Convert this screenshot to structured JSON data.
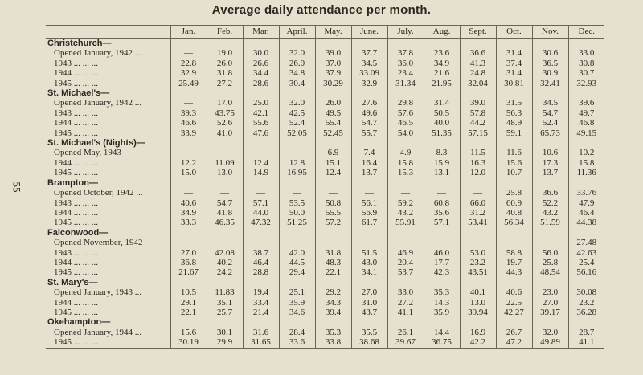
{
  "title": "Average daily attendance per month.",
  "page_number": "55",
  "table": {
    "columns": [
      "Jan.",
      "Feb.",
      "Mar.",
      "April.",
      "May.",
      "June.",
      "July.",
      "Aug.",
      "Sept.",
      "Oct.",
      "Nov.",
      "Dec."
    ],
    "sections": [
      {
        "name": "Christchurch—",
        "rows": [
          {
            "label": "Opened January, 1942 ...",
            "cells": [
              "—",
              "19.0",
              "30.0",
              "32.0",
              "39.0",
              "37.7",
              "37.8",
              "23.6",
              "36.6",
              "31.4",
              "30.6",
              "33.0"
            ]
          },
          {
            "label": "1943 ... ... ...",
            "cells": [
              "22.8",
              "26.0",
              "26.6",
              "26.0",
              "37.0",
              "34.5",
              "36.0",
              "34.9",
              "41.3",
              "37.4",
              "36.5",
              "30.8"
            ]
          },
          {
            "label": "1944 ... ... ...",
            "cells": [
              "32.9",
              "31.8",
              "34.4",
              "34.8",
              "37.9",
              "33.09",
              "23.4",
              "21.6",
              "24.8",
              "31.4",
              "30.9",
              "30.7"
            ]
          },
          {
            "label": "1945 ... ... ...",
            "cells": [
              "25.49",
              "27.2",
              "28.6",
              "30.4",
              "30.29",
              "32.9",
              "31.34",
              "21.95",
              "32.04",
              "30.81",
              "32.41",
              "32.93"
            ]
          }
        ]
      },
      {
        "name": "St. Michael's—",
        "rows": [
          {
            "label": "Opened January, 1942 ...",
            "cells": [
              "—",
              "17.0",
              "25.0",
              "32.0",
              "26.0",
              "27.6",
              "29.8",
              "31.4",
              "39.0",
              "31.5",
              "34.5",
              "39.6"
            ]
          },
          {
            "label": "1943 ... ... ...",
            "cells": [
              "39.3",
              "43.75",
              "42.1",
              "42.5",
              "49.5",
              "49.6",
              "57.6",
              "50.5",
              "57.8",
              "56.3",
              "54.7",
              "49.7"
            ]
          },
          {
            "label": "1944 ... ... ...",
            "cells": [
              "46.6",
              "52.6",
              "55.6",
              "52.4",
              "55.4",
              "54.7",
              "46.5",
              "40.0",
              "44.2",
              "48.9",
              "52.4",
              "46.8"
            ]
          },
          {
            "label": "1945 ... ... ...",
            "cells": [
              "33.9",
              "41.0",
              "47.6",
              "52.05",
              "52.45",
              "55.7",
              "54.0",
              "51.35",
              "57.15",
              "59.1",
              "65.73",
              "49.15"
            ]
          }
        ]
      },
      {
        "name": "St. Michael's (Nights)—",
        "rows": [
          {
            "label": "Opened May, 1943",
            "cells": [
              "—",
              "—",
              "—",
              "—",
              "6.9",
              "7.4",
              "4.9",
              "8.3",
              "11.5",
              "11.6",
              "10.6",
              "10.2"
            ]
          },
          {
            "label": "1944 ... ... ...",
            "cells": [
              "12.2",
              "11.09",
              "12.4",
              "12.8",
              "15.1",
              "16.4",
              "15.8",
              "15.9",
              "16.3",
              "15.6",
              "17.3",
              "15.8"
            ]
          },
          {
            "label": "1945 ... ... ...",
            "cells": [
              "15.0",
              "13.0",
              "14.9",
              "16.95",
              "12.4",
              "13.7",
              "15.3",
              "13.1",
              "12.0",
              "10.7",
              "13.7",
              "11.36"
            ]
          }
        ]
      },
      {
        "name": "Brampton—",
        "rows": [
          {
            "label": "Opened October, 1942 ...",
            "cells": [
              "—",
              "—",
              "—",
              "—",
              "—",
              "—",
              "—",
              "—",
              "—",
              "25.8",
              "36.6",
              "33.76"
            ]
          },
          {
            "label": "1943 ... ... ...",
            "cells": [
              "40.6",
              "54.7",
              "57.1",
              "53.5",
              "50.8",
              "56.1",
              "59.2",
              "60.8",
              "66.0",
              "60.9",
              "52.2",
              "47.9"
            ]
          },
          {
            "label": "1944 ... ... ...",
            "cells": [
              "34.9",
              "41.8",
              "44.0",
              "50.0",
              "55.5",
              "56.9",
              "43.2",
              "35.6",
              "31.2",
              "40.8",
              "43.2",
              "46.4"
            ]
          },
          {
            "label": "1945 ... ... ...",
            "cells": [
              "33.3",
              "46.35",
              "47.32",
              "51.25",
              "57.2",
              "61.7",
              "55.91",
              "57.1",
              "53.41",
              "56.34",
              "51.59",
              "44.38"
            ]
          }
        ]
      },
      {
        "name": "Falconwood—",
        "rows": [
          {
            "label": "Opened November, 1942",
            "cells": [
              "—",
              "—",
              "—",
              "—",
              "—",
              "—",
              "—",
              "—",
              "—",
              "—",
              "—",
              "27.48"
            ]
          },
          {
            "label": "1943 ... ... ...",
            "cells": [
              "27.0",
              "42.08",
              "38.7",
              "42.0",
              "31.8",
              "51.5",
              "46.9",
              "46.0",
              "53.0",
              "58.8",
              "56.0",
              "42.63"
            ]
          },
          {
            "label": "1944 ... ... ...",
            "cells": [
              "36.8",
              "40.2",
              "46.4",
              "44.5",
              "48.3",
              "43.0",
              "20.4",
              "17.7",
              "23.2",
              "19.7",
              "25.8",
              "25.4"
            ]
          },
          {
            "label": "1945 ... ... ...",
            "cells": [
              "21.67",
              "24.2",
              "28.8",
              "29.4",
              "22.1",
              "34.1",
              "53.7",
              "42.3",
              "43.51",
              "44.3",
              "48.54",
              "56.16"
            ]
          }
        ]
      },
      {
        "name": "St. Mary's—",
        "rows": [
          {
            "label": "Opened January, 1943 ...",
            "cells": [
              "10.5",
              "11.83",
              "19.4",
              "25.1",
              "29.2",
              "27.0",
              "33.0",
              "35.3",
              "40.1",
              "40.6",
              "23.0",
              "30.08"
            ]
          },
          {
            "label": "1944 ... ... ...",
            "cells": [
              "29.1",
              "35.1",
              "33.4",
              "35.9",
              "34.3",
              "31.0",
              "27.2",
              "14.3",
              "13.0",
              "22.5",
              "27.0",
              "23.2"
            ]
          },
          {
            "label": "1945 ... ... ...",
            "cells": [
              "22.1",
              "25.7",
              "21.4",
              "34.6",
              "39.4",
              "43.7",
              "41.1",
              "35.9",
              "39.94",
              "42.27",
              "39.17",
              "36.28"
            ]
          }
        ]
      },
      {
        "name": "Okehampton—",
        "rows": [
          {
            "label": "Opened January, 1944 ...",
            "cells": [
              "15.6",
              "30.1",
              "31.6",
              "28.4",
              "35.3",
              "35.5",
              "26.1",
              "14.4",
              "16.9",
              "26.7",
              "32.0",
              "28.7"
            ]
          },
          {
            "label": "1945 ... ... ...",
            "cells": [
              "30.19",
              "29.9",
              "31.65",
              "33.6",
              "33.8",
              "38.68",
              "39.67",
              "36.75",
              "42.2",
              "47.2",
              "49.89",
              "41.1"
            ]
          }
        ]
      }
    ]
  }
}
